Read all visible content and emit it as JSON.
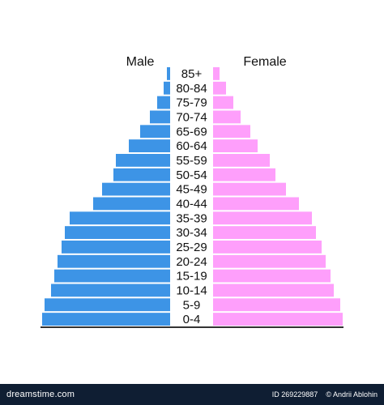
{
  "chart_data": {
    "type": "bar",
    "categories": [
      "0-4",
      "5-9",
      "10-14",
      "15-19",
      "20-24",
      "25-29",
      "30-34",
      "35-39",
      "40-44",
      "45-49",
      "50-54",
      "55-59",
      "60-64",
      "65-69",
      "70-74",
      "75-79",
      "80-84",
      "85+"
    ],
    "series": [
      {
        "name": "Male",
        "values": [
          158,
          155,
          147,
          143,
          139,
          134,
          130,
          124,
          95,
          84,
          70,
          67,
          51,
          37,
          25,
          16,
          8,
          4
        ]
      },
      {
        "name": "Female",
        "values": [
          160,
          157,
          149,
          145,
          139,
          134,
          127,
          122,
          106,
          90,
          77,
          70,
          55,
          46,
          34,
          25,
          16,
          8
        ]
      }
    ],
    "title": "",
    "xlabel": "",
    "ylabel": "",
    "legend": "top",
    "grid": false,
    "colors": {
      "male": "#3d94e6",
      "female": "#fe9ffb",
      "baseline": "#333333"
    }
  },
  "footer": {
    "brand": "dreamstime.com",
    "id_text": "ID 269229887",
    "author": "© Andrii Ablohin"
  }
}
